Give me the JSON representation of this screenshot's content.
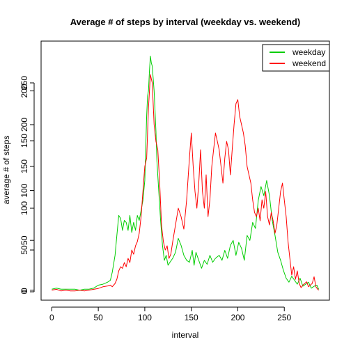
{
  "chart_data": {
    "type": "line",
    "title": "Average # of steps by interval (weekday vs. weekend)",
    "xlabel": "interval",
    "ylabel": "average # of steps",
    "xlim": [
      -11.5,
      298.5
    ],
    "x_ticks": [
      "0",
      "50",
      "100",
      "150",
      "200",
      "250"
    ],
    "y_ticks_left": [
      {
        "label": "0",
        "value": 0
      },
      {
        "label": "50",
        "value": 50
      },
      {
        "label": "100",
        "value": 100
      },
      {
        "label": "150",
        "value": 150
      },
      {
        "label": "200",
        "value": 200
      }
    ],
    "y_ticks_right": [
      {
        "label": "0",
        "value": 0
      },
      {
        "label": "50",
        "value": 50
      },
      {
        "label": "100",
        "value": 100
      },
      {
        "label": "150",
        "value": 150
      },
      {
        "label": "200",
        "value": 200
      },
      {
        "label": "250",
        "value": 250
      }
    ],
    "legend_position": "top-right",
    "series": [
      {
        "name": "weekday",
        "color": "#00cd00",
        "axis": "left",
        "ylim": [
          -10,
          250
        ],
        "points": [
          [
            0,
            1
          ],
          [
            5,
            2
          ],
          [
            10,
            1
          ],
          [
            15,
            1
          ],
          [
            20,
            1
          ],
          [
            25,
            1
          ],
          [
            30,
            0
          ],
          [
            35,
            1
          ],
          [
            40,
            1
          ],
          [
            45,
            2
          ],
          [
            50,
            5
          ],
          [
            55,
            6
          ],
          [
            60,
            8
          ],
          [
            63,
            10
          ],
          [
            65,
            18
          ],
          [
            68,
            35
          ],
          [
            70,
            55
          ],
          [
            72,
            75
          ],
          [
            74,
            72
          ],
          [
            76,
            60
          ],
          [
            78,
            70
          ],
          [
            80,
            68
          ],
          [
            82,
            60
          ],
          [
            84,
            75
          ],
          [
            86,
            58
          ],
          [
            88,
            68
          ],
          [
            90,
            60
          ],
          [
            92,
            75
          ],
          [
            94,
            70
          ],
          [
            96,
            80
          ],
          [
            98,
            90
          ],
          [
            100,
            110
          ],
          [
            102,
            175
          ],
          [
            103,
            195
          ],
          [
            104,
            200
          ],
          [
            105,
            220
          ],
          [
            106,
            235
          ],
          [
            107,
            228
          ],
          [
            108,
            225
          ],
          [
            110,
            200
          ],
          [
            112,
            160
          ],
          [
            113,
            130
          ],
          [
            115,
            100
          ],
          [
            117,
            70
          ],
          [
            119,
            45
          ],
          [
            121,
            30
          ],
          [
            123,
            35
          ],
          [
            125,
            25
          ],
          [
            127,
            28
          ],
          [
            130,
            32
          ],
          [
            133,
            38
          ],
          [
            136,
            52
          ],
          [
            139,
            45
          ],
          [
            142,
            35
          ],
          [
            145,
            30
          ],
          [
            148,
            28
          ],
          [
            151,
            40
          ],
          [
            153,
            25
          ],
          [
            155,
            38
          ],
          [
            158,
            30
          ],
          [
            161,
            22
          ],
          [
            164,
            30
          ],
          [
            167,
            26
          ],
          [
            170,
            35
          ],
          [
            173,
            28
          ],
          [
            176,
            32
          ],
          [
            180,
            35
          ],
          [
            183,
            30
          ],
          [
            186,
            40
          ],
          [
            189,
            32
          ],
          [
            192,
            45
          ],
          [
            195,
            50
          ],
          [
            198,
            35
          ],
          [
            201,
            48
          ],
          [
            204,
            42
          ],
          [
            207,
            30
          ],
          [
            210,
            55
          ],
          [
            213,
            50
          ],
          [
            216,
            68
          ],
          [
            219,
            62
          ],
          [
            222,
            90
          ],
          [
            225,
            104
          ],
          [
            228,
            95
          ],
          [
            231,
            110
          ],
          [
            234,
            95
          ],
          [
            237,
            70
          ],
          [
            240,
            55
          ],
          [
            243,
            38
          ],
          [
            246,
            30
          ],
          [
            249,
            20
          ],
          [
            252,
            12
          ],
          [
            255,
            8
          ],
          [
            258,
            14
          ],
          [
            261,
            10
          ],
          [
            264,
            6
          ],
          [
            267,
            12
          ],
          [
            270,
            4
          ],
          [
            273,
            6
          ],
          [
            276,
            8
          ],
          [
            279,
            2
          ],
          [
            282,
            4
          ],
          [
            285,
            5
          ],
          [
            287,
            1
          ]
        ]
      },
      {
        "name": "weekend",
        "color": "#ff0000",
        "axis": "right",
        "ylim": [
          -10,
          300
        ],
        "points": [
          [
            0,
            2
          ],
          [
            5,
            3
          ],
          [
            10,
            1
          ],
          [
            15,
            2
          ],
          [
            20,
            1
          ],
          [
            25,
            1
          ],
          [
            30,
            2
          ],
          [
            35,
            1
          ],
          [
            40,
            2
          ],
          [
            45,
            3
          ],
          [
            50,
            4
          ],
          [
            55,
            6
          ],
          [
            60,
            7
          ],
          [
            63,
            8
          ],
          [
            65,
            6
          ],
          [
            68,
            10
          ],
          [
            70,
            15
          ],
          [
            72,
            25
          ],
          [
            74,
            30
          ],
          [
            76,
            28
          ],
          [
            78,
            35
          ],
          [
            80,
            30
          ],
          [
            82,
            40
          ],
          [
            84,
            35
          ],
          [
            86,
            50
          ],
          [
            88,
            45
          ],
          [
            90,
            55
          ],
          [
            92,
            60
          ],
          [
            94,
            70
          ],
          [
            96,
            90
          ],
          [
            98,
            120
          ],
          [
            100,
            150
          ],
          [
            102,
            160
          ],
          [
            104,
            220
          ],
          [
            105,
            240
          ],
          [
            106,
            260
          ],
          [
            108,
            250
          ],
          [
            110,
            200
          ],
          [
            112,
            180
          ],
          [
            114,
            170
          ],
          [
            116,
            130
          ],
          [
            118,
            80
          ],
          [
            120,
            60
          ],
          [
            122,
            50
          ],
          [
            124,
            55
          ],
          [
            126,
            40
          ],
          [
            128,
            45
          ],
          [
            130,
            60
          ],
          [
            133,
            80
          ],
          [
            136,
            100
          ],
          [
            139,
            90
          ],
          [
            142,
            75
          ],
          [
            145,
            110
          ],
          [
            148,
            160
          ],
          [
            150,
            190
          ],
          [
            152,
            150
          ],
          [
            154,
            120
          ],
          [
            156,
            100
          ],
          [
            158,
            130
          ],
          [
            160,
            170
          ],
          [
            162,
            120
          ],
          [
            164,
            100
          ],
          [
            166,
            140
          ],
          [
            168,
            90
          ],
          [
            170,
            110
          ],
          [
            172,
            150
          ],
          [
            174,
            170
          ],
          [
            176,
            190
          ],
          [
            178,
            180
          ],
          [
            180,
            170
          ],
          [
            182,
            150
          ],
          [
            184,
            130
          ],
          [
            186,
            160
          ],
          [
            188,
            180
          ],
          [
            190,
            170
          ],
          [
            192,
            140
          ],
          [
            194,
            170
          ],
          [
            196,
            200
          ],
          [
            198,
            225
          ],
          [
            200,
            230
          ],
          [
            202,
            210
          ],
          [
            204,
            200
          ],
          [
            206,
            190
          ],
          [
            208,
            175
          ],
          [
            210,
            150
          ],
          [
            212,
            140
          ],
          [
            214,
            130
          ],
          [
            216,
            110
          ],
          [
            218,
            95
          ],
          [
            220,
            90
          ],
          [
            222,
            100
          ],
          [
            224,
            85
          ],
          [
            226,
            110
          ],
          [
            228,
            100
          ],
          [
            230,
            120
          ],
          [
            232,
            90
          ],
          [
            234,
            80
          ],
          [
            236,
            95
          ],
          [
            238,
            85
          ],
          [
            240,
            70
          ],
          [
            242,
            80
          ],
          [
            244,
            100
          ],
          [
            246,
            120
          ],
          [
            248,
            130
          ],
          [
            250,
            110
          ],
          [
            252,
            90
          ],
          [
            254,
            60
          ],
          [
            256,
            40
          ],
          [
            258,
            20
          ],
          [
            260,
            30
          ],
          [
            262,
            15
          ],
          [
            264,
            25
          ],
          [
            266,
            10
          ],
          [
            268,
            5
          ],
          [
            270,
            8
          ],
          [
            272,
            10
          ],
          [
            274,
            12
          ],
          [
            276,
            6
          ],
          [
            278,
            8
          ],
          [
            280,
            10
          ],
          [
            282,
            18
          ],
          [
            284,
            6
          ],
          [
            286,
            3
          ],
          [
            287,
            2
          ]
        ]
      }
    ]
  }
}
